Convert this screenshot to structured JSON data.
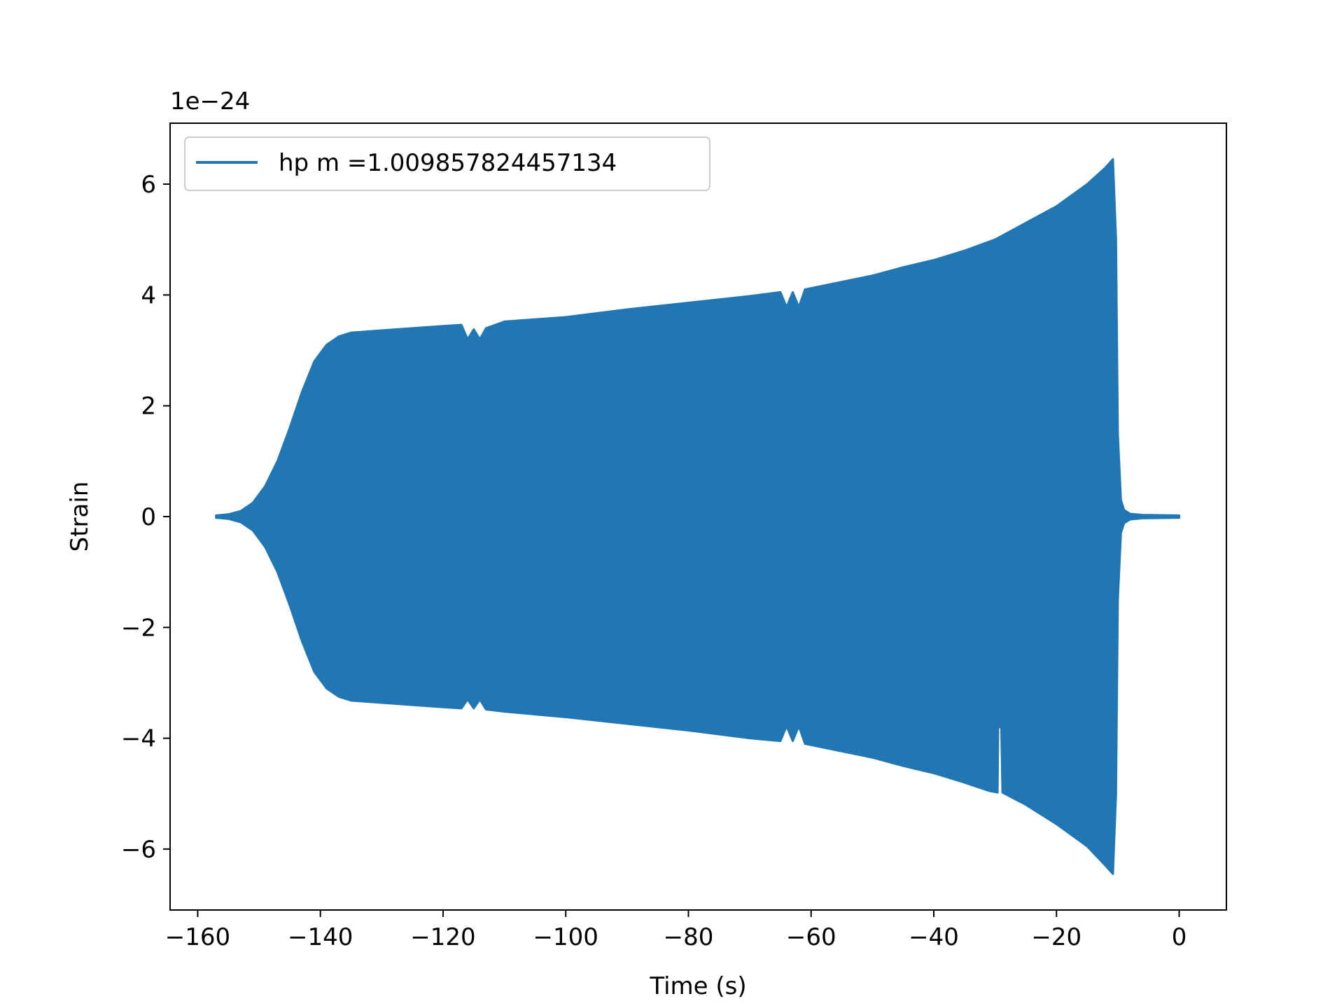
{
  "chart_data": {
    "type": "line",
    "title": "",
    "xlabel": "Time (s)",
    "ylabel": "Strain",
    "y_scale_label": "1e−24",
    "xlim": [
      -164.5,
      7.7
    ],
    "ylim": [
      -7.1,
      7.1
    ],
    "x_ticks": [
      {
        "value": -160,
        "label": "−160"
      },
      {
        "value": -140,
        "label": "−140"
      },
      {
        "value": -120,
        "label": "−120"
      },
      {
        "value": -100,
        "label": "−100"
      },
      {
        "value": -80,
        "label": "−80"
      },
      {
        "value": -60,
        "label": "−60"
      },
      {
        "value": -40,
        "label": "−40"
      },
      {
        "value": -20,
        "label": "−20"
      },
      {
        "value": 0,
        "label": "0"
      }
    ],
    "y_ticks": [
      {
        "value": 6,
        "label": "6"
      },
      {
        "value": 4,
        "label": "4"
      },
      {
        "value": 2,
        "label": "2"
      },
      {
        "value": 0,
        "label": "0"
      },
      {
        "value": -2,
        "label": "−2"
      },
      {
        "value": -4,
        "label": "−4"
      },
      {
        "value": -6,
        "label": "−6"
      }
    ],
    "grid": false,
    "legend_position": "top-left",
    "color": "#2077b4",
    "series": [
      {
        "name": "hp m =1.009857824457134",
        "envelope_upper": [
          [
            -157,
            0.02
          ],
          [
            -155,
            0.04
          ],
          [
            -153,
            0.1
          ],
          [
            -151,
            0.25
          ],
          [
            -149,
            0.55
          ],
          [
            -147,
            1.0
          ],
          [
            -145,
            1.6
          ],
          [
            -143,
            2.25
          ],
          [
            -141,
            2.8
          ],
          [
            -139,
            3.1
          ],
          [
            -137,
            3.25
          ],
          [
            -135,
            3.32
          ],
          [
            -130,
            3.36
          ],
          [
            -125,
            3.4
          ],
          [
            -120,
            3.44
          ],
          [
            -117,
            3.46
          ],
          [
            -116,
            3.2
          ],
          [
            -115,
            3.38
          ],
          [
            -114,
            3.2
          ],
          [
            -113,
            3.4
          ],
          [
            -110,
            3.52
          ],
          [
            -100,
            3.6
          ],
          [
            -90,
            3.74
          ],
          [
            -80,
            3.86
          ],
          [
            -70,
            3.98
          ],
          [
            -65,
            4.05
          ],
          [
            -64,
            3.78
          ],
          [
            -63,
            4.05
          ],
          [
            -62,
            3.78
          ],
          [
            -61,
            4.1
          ],
          [
            -50,
            4.35
          ],
          [
            -45,
            4.5
          ],
          [
            -40,
            4.63
          ],
          [
            -35,
            4.8
          ],
          [
            -30,
            5.0
          ],
          [
            -25,
            5.3
          ],
          [
            -20,
            5.6
          ],
          [
            -15,
            6.0
          ],
          [
            -12,
            6.3
          ],
          [
            -10.8,
            6.45
          ],
          [
            -10.3,
            5.0
          ],
          [
            -10,
            1.5
          ],
          [
            -9.5,
            0.3
          ],
          [
            -9,
            0.12
          ],
          [
            -8,
            0.05
          ],
          [
            -6,
            0.03
          ],
          [
            0,
            0.02
          ]
        ],
        "envelope_lower": [
          [
            -157,
            -0.02
          ],
          [
            -155,
            -0.04
          ],
          [
            -153,
            -0.1
          ],
          [
            -151,
            -0.25
          ],
          [
            -149,
            -0.55
          ],
          [
            -147,
            -1.0
          ],
          [
            -145,
            -1.6
          ],
          [
            -143,
            -2.25
          ],
          [
            -141,
            -2.8
          ],
          [
            -139,
            -3.1
          ],
          [
            -137,
            -3.25
          ],
          [
            -135,
            -3.32
          ],
          [
            -130,
            -3.36
          ],
          [
            -125,
            -3.4
          ],
          [
            -120,
            -3.44
          ],
          [
            -117,
            -3.46
          ],
          [
            -116,
            -3.3
          ],
          [
            -115,
            -3.46
          ],
          [
            -114,
            -3.3
          ],
          [
            -113,
            -3.48
          ],
          [
            -110,
            -3.52
          ],
          [
            -100,
            -3.62
          ],
          [
            -90,
            -3.74
          ],
          [
            -80,
            -3.86
          ],
          [
            -70,
            -4.0
          ],
          [
            -65,
            -4.05
          ],
          [
            -64,
            -3.78
          ],
          [
            -63,
            -4.05
          ],
          [
            -62,
            -3.78
          ],
          [
            -61,
            -4.1
          ],
          [
            -50,
            -4.35
          ],
          [
            -45,
            -4.5
          ],
          [
            -40,
            -4.63
          ],
          [
            -35,
            -4.8
          ],
          [
            -31,
            -4.95
          ],
          [
            -29.6,
            -4.98
          ],
          [
            -29.5,
            -3.8
          ],
          [
            -29,
            -3.8
          ],
          [
            -28.8,
            -4.98
          ],
          [
            -25,
            -5.2
          ],
          [
            -20,
            -5.55
          ],
          [
            -15,
            -5.95
          ],
          [
            -12,
            -6.3
          ],
          [
            -10.8,
            -6.45
          ],
          [
            -10.3,
            -5.0
          ],
          [
            -10,
            -1.5
          ],
          [
            -9.5,
            -0.3
          ],
          [
            -9,
            -0.12
          ],
          [
            -8,
            -0.05
          ],
          [
            -6,
            -0.03
          ],
          [
            0,
            -0.02
          ]
        ]
      }
    ]
  }
}
